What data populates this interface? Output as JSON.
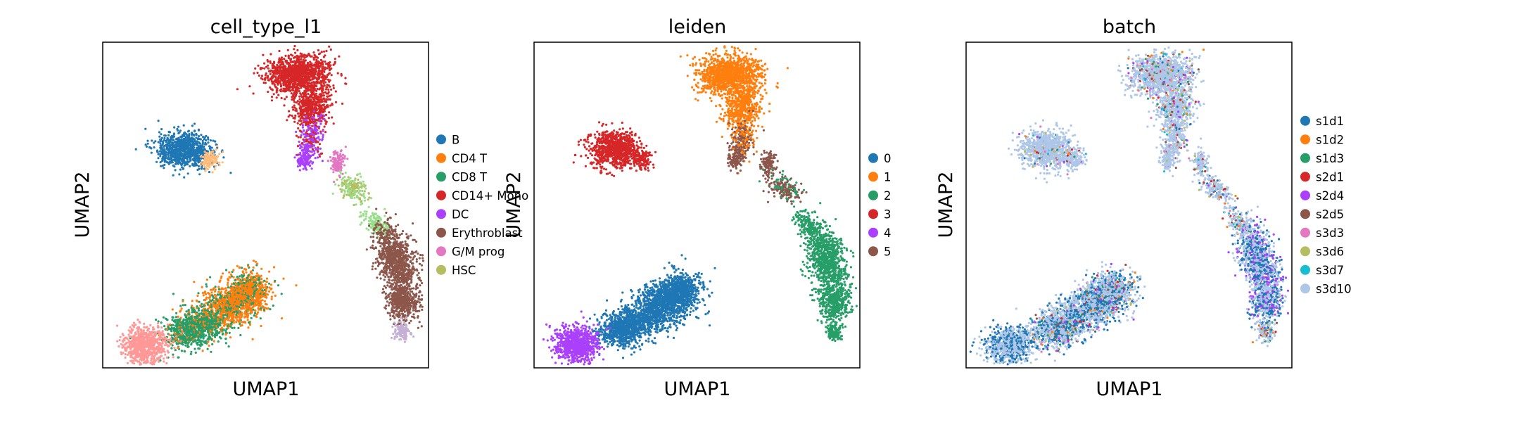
{
  "chart_data": [
    {
      "type": "scatter",
      "title": "cell_type_l1",
      "xlabel": "UMAP1",
      "ylabel": "UMAP2",
      "legend": "right",
      "series": [
        {
          "name": "B",
          "color": "#1f77b4"
        },
        {
          "name": "CD4 T",
          "color": "#ff7f0e"
        },
        {
          "name": "CD8 T",
          "color": "#279e68"
        },
        {
          "name": "CD14+ Mono",
          "color": "#d62728"
        },
        {
          "name": "DC",
          "color": "#aa40fc"
        },
        {
          "name": "Erythroblast",
          "color": "#8c564b"
        },
        {
          "name": "G/M prog",
          "color": "#e377c2"
        },
        {
          "name": "HSC",
          "color": "#b5bd61"
        }
      ],
      "extra_colors": [
        "#98df8a",
        "#ff9896",
        "#c5b0d5",
        "#ffbb78"
      ]
    },
    {
      "type": "scatter",
      "title": "leiden",
      "xlabel": "UMAP1",
      "ylabel": "UMAP2",
      "legend": "right",
      "series": [
        {
          "name": "0",
          "color": "#1f77b4"
        },
        {
          "name": "1",
          "color": "#ff7f0e"
        },
        {
          "name": "2",
          "color": "#279e68"
        },
        {
          "name": "3",
          "color": "#d62728"
        },
        {
          "name": "4",
          "color": "#aa40fc"
        },
        {
          "name": "5",
          "color": "#8c564b"
        }
      ]
    },
    {
      "type": "scatter",
      "title": "batch",
      "xlabel": "UMAP1",
      "ylabel": "UMAP2",
      "legend": "right",
      "series": [
        {
          "name": "s1d1",
          "color": "#1f77b4"
        },
        {
          "name": "s1d2",
          "color": "#ff7f0e"
        },
        {
          "name": "s1d3",
          "color": "#279e68"
        },
        {
          "name": "s2d1",
          "color": "#d62728"
        },
        {
          "name": "s2d4",
          "color": "#aa40fc"
        },
        {
          "name": "s2d5",
          "color": "#8c564b"
        },
        {
          "name": "s3d3",
          "color": "#e377c2"
        },
        {
          "name": "s3d6",
          "color": "#b5bd61"
        },
        {
          "name": "s3d7",
          "color": "#17becf"
        },
        {
          "name": "s3d10",
          "color": "#aec7e8"
        }
      ]
    }
  ]
}
